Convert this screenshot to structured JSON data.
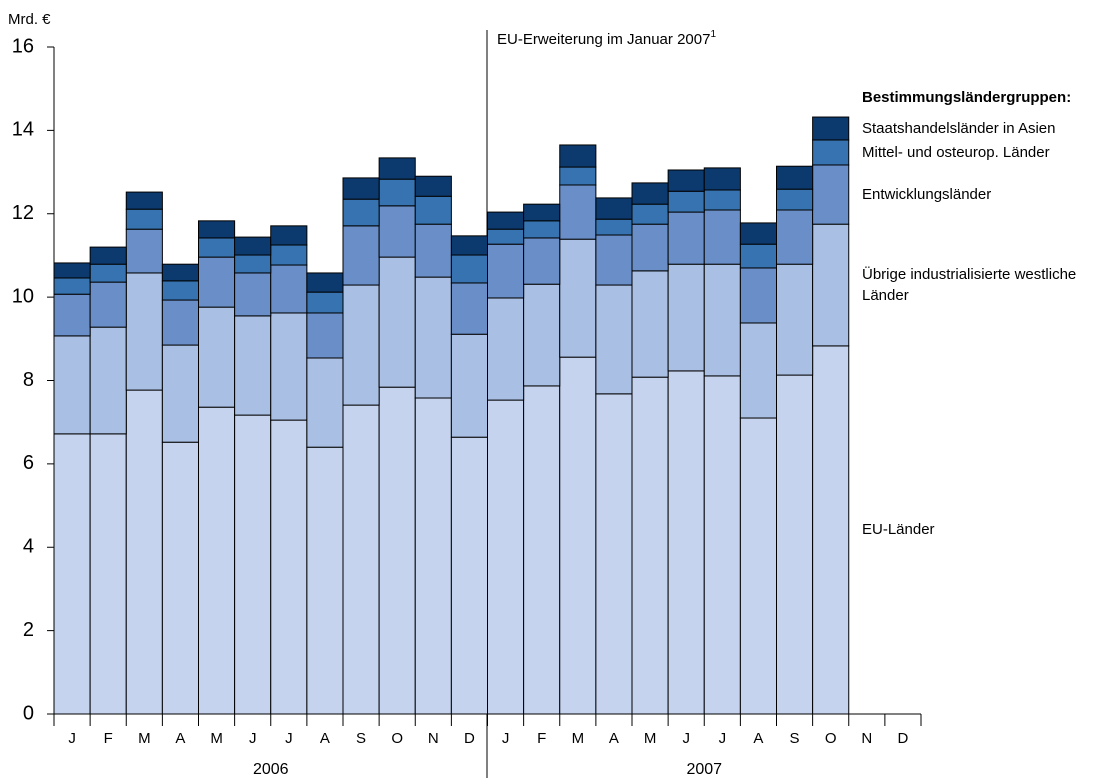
{
  "chart_data": {
    "type": "stacked_bar",
    "y_axis_label": "Mrd. €",
    "annotation": "EU-Erweiterung im Januar 2007",
    "annotation_footnote": "1",
    "legend_title": "Bestimmungsländergruppen:",
    "categories": [
      "J",
      "F",
      "M",
      "A",
      "M",
      "J",
      "J",
      "A",
      "S",
      "O",
      "N",
      "D",
      "J",
      "F",
      "M",
      "A",
      "M",
      "J",
      "J",
      "A",
      "S",
      "O",
      "N",
      "D"
    ],
    "groups": [
      "2006",
      "2007"
    ],
    "ylim": [
      0,
      16
    ],
    "yticks": [
      0,
      2,
      4,
      6,
      8,
      10,
      12,
      14,
      16
    ],
    "series": [
      {
        "name": "EU-Länder",
        "color": "#c5d3ee",
        "values": [
          6.72,
          6.72,
          7.77,
          6.52,
          7.36,
          7.17,
          7.05,
          6.4,
          7.41,
          7.84,
          7.58,
          6.64,
          7.53,
          7.87,
          8.56,
          7.68,
          8.08,
          8.23,
          8.11,
          7.1,
          8.13,
          8.83,
          null,
          null
        ]
      },
      {
        "name": "Übrige industrialisierte westliche Länder",
        "color": "#a9bfe3",
        "values": [
          2.35,
          2.56,
          2.81,
          2.33,
          2.4,
          2.38,
          2.57,
          2.14,
          2.88,
          3.12,
          2.9,
          2.47,
          2.45,
          2.44,
          2.83,
          2.61,
          2.55,
          2.56,
          2.68,
          2.28,
          2.66,
          2.92,
          null,
          null
        ]
      },
      {
        "name": "Entwicklungsländer",
        "color": "#6a8fc8",
        "values": [
          1.0,
          1.08,
          1.05,
          1.08,
          1.2,
          1.03,
          1.15,
          1.08,
          1.42,
          1.23,
          1.27,
          1.23,
          1.29,
          1.11,
          1.3,
          1.2,
          1.12,
          1.25,
          1.3,
          1.32,
          1.3,
          1.42,
          null,
          null
        ]
      },
      {
        "name": "Mittel- und osteurop. Länder",
        "color": "#3673b0",
        "values": [
          0.39,
          0.43,
          0.48,
          0.46,
          0.46,
          0.43,
          0.48,
          0.5,
          0.64,
          0.64,
          0.67,
          0.67,
          0.36,
          0.41,
          0.43,
          0.38,
          0.48,
          0.5,
          0.48,
          0.57,
          0.5,
          0.6,
          null,
          null
        ]
      },
      {
        "name": "Staatshandelsländer in Asien",
        "color": "#0d3a6e",
        "values": [
          0.36,
          0.41,
          0.41,
          0.4,
          0.41,
          0.43,
          0.46,
          0.46,
          0.51,
          0.51,
          0.48,
          0.46,
          0.41,
          0.4,
          0.53,
          0.51,
          0.51,
          0.51,
          0.53,
          0.51,
          0.55,
          0.55,
          null,
          null
        ]
      }
    ]
  }
}
